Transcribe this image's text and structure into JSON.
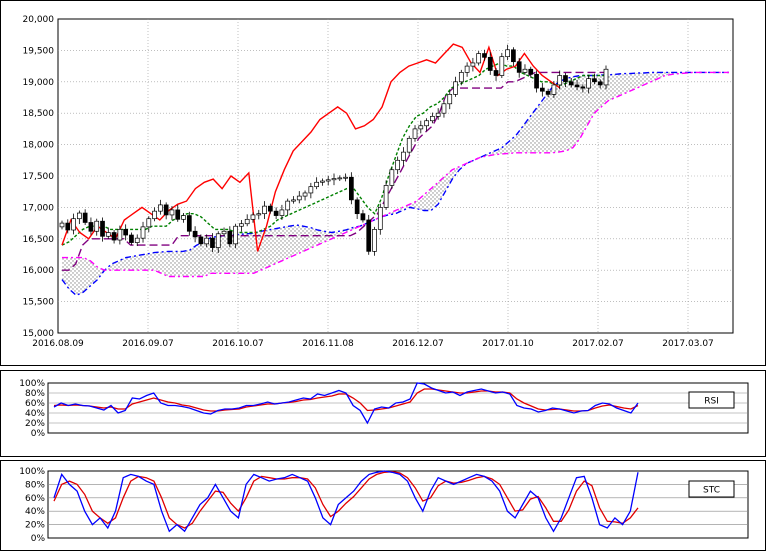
{
  "chart_data": [
    {
      "type": "candlestick",
      "title": "",
      "ylim": [
        15000,
        20000
      ],
      "y_ticks": [
        "20,000",
        "19,500",
        "19,000",
        "18,500",
        "18,000",
        "17,500",
        "17,000",
        "16,500",
        "16,000",
        "15,500",
        "15,000"
      ],
      "x_tick_labels": [
        "2016.08.09",
        "2016.09.07",
        "2016.10.07",
        "2016.11.08",
        "2016.12.07",
        "2017.01.10",
        "2017.02.07",
        "2017.03.07"
      ],
      "grid": true,
      "colors": {
        "up": "#ffffff",
        "down": "#000000",
        "span_a": "#0000ff",
        "span_b": "#ff00ff",
        "base_line": "#800080",
        "conv_line": "#008000",
        "lagging": "#ff0000",
        "cloud": "#c8c8c8"
      },
      "price": [
        16750,
        16640,
        16820,
        16910,
        16760,
        16620,
        16780,
        16540,
        16600,
        16480,
        16650,
        16560,
        16440,
        16510,
        16690,
        16820,
        16940,
        17040,
        16880,
        16960,
        16810,
        16870,
        16620,
        16530,
        16420,
        16510,
        16360,
        16580,
        16620,
        16420,
        16700,
        16740,
        16810,
        16880,
        16900,
        17020,
        16940,
        16870,
        16960,
        17100,
        17120,
        17180,
        17230,
        17330,
        17400,
        17420,
        17440,
        17460,
        17470,
        17480,
        17120,
        16900,
        16800,
        16300,
        16650,
        17000,
        17350,
        17600,
        17750,
        17880,
        18100,
        18250,
        18300,
        18380,
        18450,
        18500,
        18650,
        18800,
        19000,
        19150,
        19250,
        19300,
        19450,
        19390,
        19180,
        19100,
        19400,
        19510,
        19320,
        19150,
        19200,
        19120,
        18900,
        18850,
        18800,
        18950,
        19100,
        19000,
        18950,
        18920,
        18900,
        19050,
        19000,
        18950,
        19200
      ],
      "span_a": [
        15850,
        15700,
        15600,
        15650,
        15750,
        15850,
        16000,
        16100,
        16150,
        16200,
        16220,
        16240,
        16260,
        16280,
        16290,
        16300,
        16300,
        16300,
        16320,
        16400,
        16450,
        16520,
        16540,
        16550,
        16560,
        16570,
        16580,
        16590,
        16620,
        16640,
        16660,
        16680,
        16700,
        16720,
        16700,
        16680,
        16640,
        16620,
        16600,
        16620,
        16640,
        16680,
        16700,
        16750,
        16800,
        16850,
        16880,
        16900,
        16950,
        17000,
        16980,
        16950,
        16950,
        17050,
        17250,
        17450,
        17600,
        17700,
        17750,
        17800,
        17850,
        17900,
        17950,
        18050,
        18150,
        18300,
        18450,
        18600,
        18750,
        18900,
        19000,
        19050,
        19080,
        19100,
        19100,
        19100,
        19110,
        19110,
        19120,
        19130,
        19130,
        19140,
        19140,
        19150,
        19150,
        19150,
        19150,
        19150,
        19150,
        19150,
        19150,
        19150,
        19150,
        19150,
        19150
      ],
      "span_b": [
        16200,
        16200,
        16200,
        16200,
        16150,
        16050,
        16000,
        16000,
        16000,
        16000,
        16000,
        16000,
        16000,
        16000,
        15950,
        15900,
        15900,
        15900,
        15900,
        15900,
        15900,
        15950,
        15950,
        15950,
        15950,
        15950,
        15950,
        15950,
        16000,
        16050,
        16100,
        16150,
        16200,
        16250,
        16300,
        16350,
        16400,
        16450,
        16500,
        16550,
        16600,
        16650,
        16700,
        16750,
        16800,
        16850,
        16900,
        16950,
        17000,
        17050,
        17100,
        17200,
        17300,
        17400,
        17500,
        17600,
        17650,
        17700,
        17750,
        17800,
        17820,
        17840,
        17850,
        17860,
        17870,
        17870,
        17870,
        17870,
        17870,
        17870,
        17880,
        17900,
        17950,
        18100,
        18300,
        18500,
        18600,
        18700,
        18750,
        18800,
        18850,
        18900,
        18950,
        19000,
        19050,
        19100,
        19120,
        19130,
        19140,
        19150,
        19150,
        19150,
        19150,
        19150,
        19150
      ],
      "base_line": [
        16000,
        16000,
        16100,
        16400,
        16500,
        16500,
        16500,
        16500,
        16500,
        16500,
        16400,
        16400,
        16400,
        16400,
        16400,
        16400,
        16400,
        16550,
        16550,
        16550,
        16550,
        16550,
        16550,
        16550,
        16550,
        16550,
        16550,
        16550,
        16550,
        16550,
        16550,
        16550,
        16550,
        16550,
        16550,
        16550,
        16550,
        16550,
        16550,
        16550,
        16550,
        16550,
        16550,
        16600,
        16700,
        16800,
        16900,
        17100,
        17300,
        17500,
        17700,
        17900,
        18100,
        18200,
        18300,
        18500,
        18800,
        18900,
        18900,
        18900,
        18900,
        18900,
        18900,
        18900,
        18900,
        19000,
        19000,
        19050,
        19100,
        19150,
        19150,
        19150,
        19150,
        19150,
        19150,
        19150,
        19150,
        19150,
        19150,
        19150
      ],
      "conv_line": [
        16400,
        16450,
        16550,
        16650,
        16700,
        16700,
        16700,
        16650,
        16650,
        16650,
        16650,
        16650,
        16650,
        16700,
        16700,
        16700,
        16800,
        16850,
        16900,
        16900,
        16850,
        16750,
        16650,
        16650,
        16650,
        16600,
        16600,
        16600,
        16600,
        16650,
        16700,
        16800,
        16850,
        16900,
        16950,
        17000,
        17050,
        17100,
        17150,
        17200,
        17250,
        17300,
        17300,
        17150,
        17000,
        16900,
        17150,
        17500,
        17800,
        18100,
        18300,
        18450,
        18500,
        18600,
        18650,
        18750,
        18900,
        18950,
        19000,
        19050,
        19100,
        19200,
        19250,
        19300,
        19250,
        19250,
        19150,
        19100,
        19050,
        19000,
        19000,
        18950,
        18950,
        19000,
        19050,
        19100,
        19100,
        19100,
        19100
      ],
      "lagging": [
        16400,
        16800,
        16600,
        16500,
        16700,
        16600,
        16500,
        16800,
        16900,
        17000,
        16900,
        16800,
        16950,
        17050,
        17100,
        17300,
        17400,
        17450,
        17300,
        17500,
        17400,
        17550,
        16300,
        16700,
        17250,
        17600,
        17900,
        18050,
        18200,
        18400,
        18500,
        18600,
        18500,
        18250,
        18300,
        18400,
        18600,
        19000,
        19150,
        19250,
        19300,
        19350,
        19300,
        19450,
        19600,
        19550,
        19300,
        19150,
        19550,
        19100,
        19200,
        19250,
        19450,
        19250,
        19100,
        19000,
        18900
      ],
      "rsi": [
        52,
        60,
        55,
        58,
        55,
        54,
        50,
        46,
        55,
        40,
        45,
        70,
        68,
        75,
        80,
        60,
        55,
        55,
        53,
        50,
        45,
        40,
        38,
        45,
        48,
        48,
        50,
        55,
        55,
        58,
        62,
        58,
        60,
        62,
        66,
        70,
        68,
        78,
        75,
        80,
        85,
        80,
        55,
        45,
        20,
        48,
        52,
        50,
        60,
        62,
        68,
        100,
        98,
        90,
        85,
        80,
        82,
        75,
        82,
        85,
        88,
        84,
        80,
        82,
        78,
        55,
        50,
        48,
        42,
        45,
        50,
        48,
        44,
        40,
        44,
        45,
        55,
        60,
        58,
        50,
        45,
        40,
        60
      ],
      "rsi_sig": [
        55,
        56,
        55,
        56,
        55,
        54,
        52,
        50,
        52,
        48,
        48,
        58,
        62,
        66,
        70,
        66,
        62,
        60,
        56,
        54,
        50,
        46,
        44,
        44,
        46,
        47,
        48,
        52,
        54,
        56,
        58,
        58,
        60,
        61,
        63,
        66,
        67,
        70,
        72,
        74,
        78,
        78,
        70,
        60,
        45,
        46,
        48,
        50,
        54,
        58,
        62,
        80,
        88,
        88,
        86,
        84,
        82,
        80,
        80,
        82,
        84,
        84,
        82,
        82,
        80,
        68,
        60,
        54,
        48,
        46,
        47,
        48,
        46,
        44,
        44,
        45,
        50,
        54,
        56,
        53,
        50,
        48,
        55
      ],
      "stc": [
        60,
        95,
        80,
        70,
        40,
        20,
        30,
        15,
        40,
        90,
        95,
        92,
        85,
        80,
        40,
        10,
        20,
        10,
        30,
        50,
        60,
        80,
        60,
        40,
        30,
        80,
        95,
        90,
        85,
        88,
        90,
        95,
        90,
        85,
        60,
        30,
        20,
        50,
        60,
        70,
        85,
        95,
        98,
        100,
        98,
        95,
        85,
        60,
        40,
        70,
        90,
        85,
        80,
        85,
        90,
        95,
        92,
        85,
        70,
        40,
        30,
        50,
        70,
        60,
        30,
        10,
        30,
        60,
        90,
        92,
        60,
        20,
        15,
        30,
        20,
        40,
        98
      ],
      "stc_sig": [
        55,
        80,
        85,
        80,
        65,
        40,
        30,
        22,
        30,
        60,
        85,
        92,
        90,
        85,
        60,
        30,
        20,
        15,
        22,
        40,
        55,
        70,
        68,
        52,
        40,
        60,
        85,
        92,
        90,
        88,
        88,
        90,
        90,
        88,
        75,
        50,
        32,
        40,
        52,
        62,
        75,
        88,
        95,
        98,
        99,
        97,
        90,
        75,
        55,
        60,
        78,
        85,
        82,
        83,
        86,
        90,
        92,
        88,
        80,
        60,
        40,
        42,
        58,
        62,
        45,
        25,
        25,
        42,
        70,
        85,
        78,
        45,
        25,
        24,
        22,
        30,
        45
      ],
      "panel_labels": [
        "RSI",
        "STC"
      ],
      "osc_ticks": [
        "100%",
        "80%",
        "60%",
        "40%",
        "20%",
        "0%"
      ]
    }
  ]
}
